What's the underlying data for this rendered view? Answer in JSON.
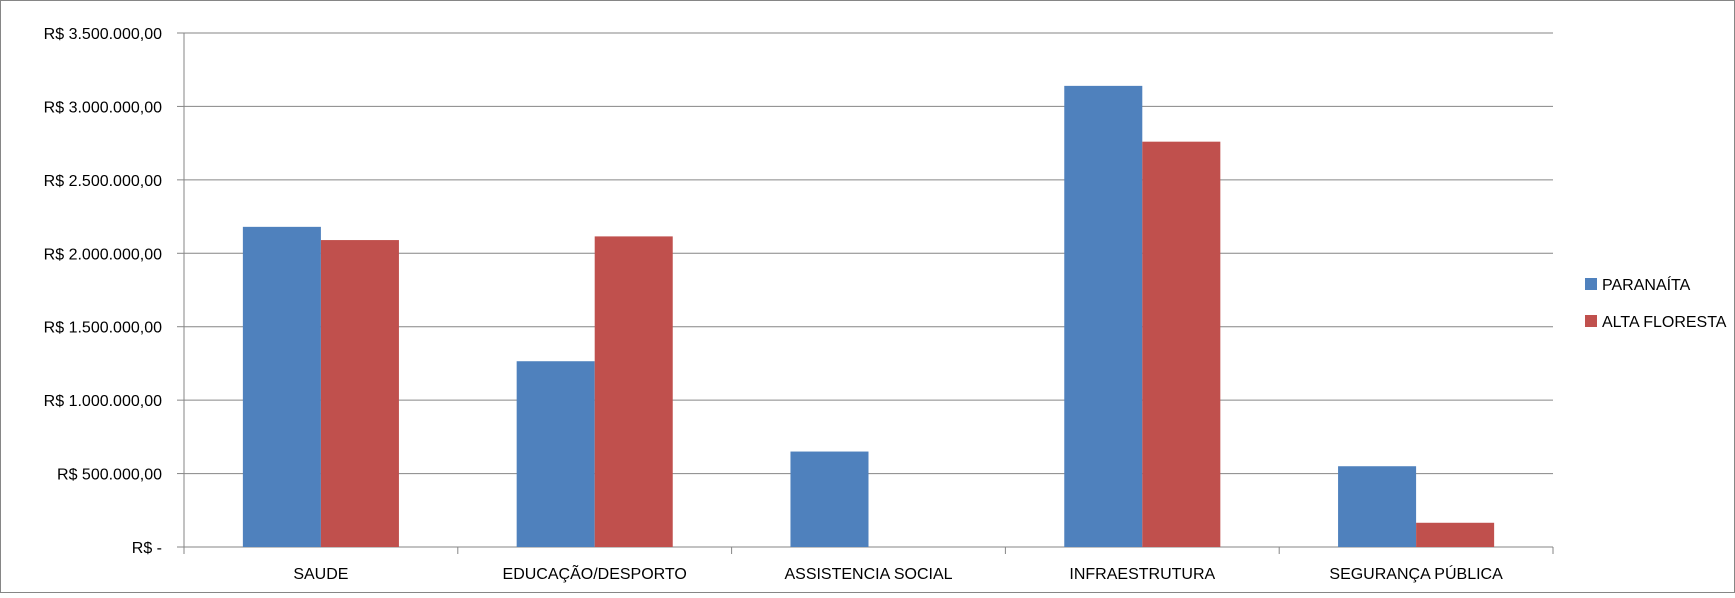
{
  "chart_data": {
    "type": "bar",
    "title": "",
    "xlabel": "",
    "ylabel": "",
    "categories": [
      "SAUDE",
      "EDUCAÇÃO/DESPORTO",
      "ASSISTENCIA SOCIAL",
      "INFRAESTRUTURA",
      "SEGURANÇA PÚBLICA"
    ],
    "series": [
      {
        "name": "PARANAÍTA",
        "color": "#4F81BD",
        "values": [
          2180000,
          1265000,
          650000,
          3140000,
          550000
        ]
      },
      {
        "name": "ALTA FLORESTA",
        "color": "#C0504D",
        "values": [
          2090000,
          2115000,
          0,
          2760000,
          165000
        ]
      }
    ],
    "ylim": [
      0,
      3500000
    ],
    "yticks": [
      0,
      500000,
      1000000,
      1500000,
      2000000,
      2500000,
      3000000,
      3500000
    ],
    "ytick_labels": [
      "R$ -",
      "R$ 500.000,00",
      "R$ 1.000.000,00",
      "R$ 1.500.000,00",
      "R$ 2.000.000,00",
      "R$ 2.500.000,00",
      "R$ 3.000.000,00",
      "R$ 3.500.000,00"
    ],
    "grid": true,
    "legend_position": "right",
    "gridline_color": "#868686",
    "frame_color": "#868686"
  }
}
